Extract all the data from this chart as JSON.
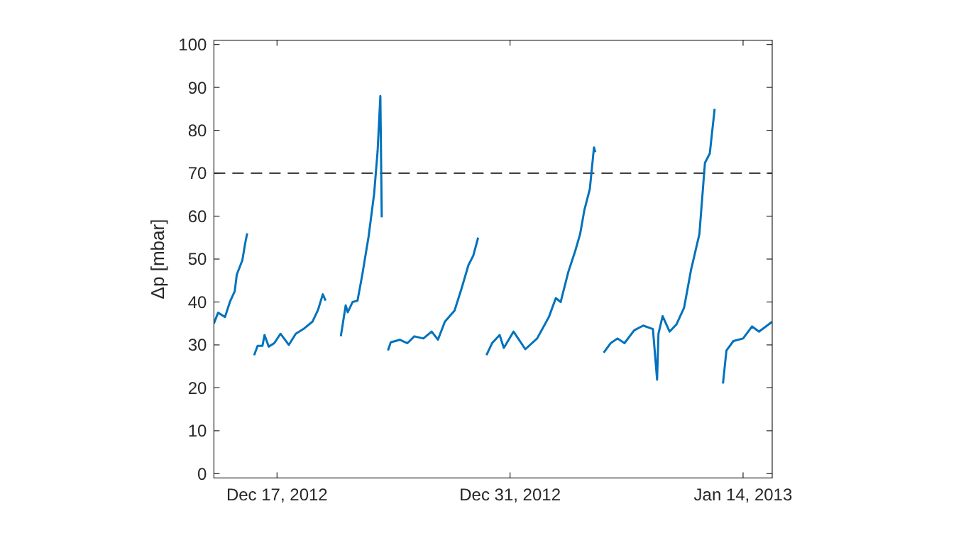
{
  "chart_data": {
    "type": "line",
    "ylabel": "Δp [mbar]",
    "xlim": [
      "2012-12-13T05:00",
      "2013-01-15T18:00"
    ],
    "xticks": [
      {
        "value": "2012-12-17",
        "label": "Dec 17, 2012"
      },
      {
        "value": "2012-12-31",
        "label": "Dec 31, 2012"
      },
      {
        "value": "2013-01-14",
        "label": "Jan 14, 2013"
      }
    ],
    "ylim": [
      -1,
      101
    ],
    "yticks": [
      0,
      10,
      20,
      30,
      40,
      50,
      60,
      70,
      80,
      90,
      100
    ],
    "grid": false,
    "marker": "none",
    "line_style": "solid",
    "ref_lines": [
      {
        "axis": "y",
        "value": 70,
        "color": "#404040",
        "line_style": "dashed"
      }
    ],
    "series": [
      {
        "color": "#0072bd",
        "x": [
          "2012-12-13T05:00",
          "2012-12-13T11:00",
          "2012-12-13T21:00",
          "2012-12-14T04:00",
          "2012-12-14T11:00",
          "2012-12-14T14:00",
          "2012-12-14T22:00",
          "2012-12-15T02:00",
          "2012-12-15T05:00",
          "2012-12-15T08:00",
          "2012-12-15T14:00",
          "2012-12-15T15:00",
          "2012-12-15T20:00",
          "2012-12-16T03:00",
          "2012-12-16T06:00",
          "2012-12-16T12:00",
          "2012-12-16T20:00",
          "2012-12-17T05:00",
          "2012-12-17T17:00",
          "2012-12-18T03:00",
          "2012-12-18T14:00",
          "2012-12-19T03:00",
          "2012-12-19T11:00",
          "2012-12-19T18:00",
          "2012-12-19T22:00",
          "2012-12-20T00:00",
          "2012-12-20T18:00",
          "2012-12-20T20:00",
          "2012-12-21T03:00",
          "2012-12-21T06:00",
          "2012-12-21T13:00",
          "2012-12-21T20:00",
          "2012-12-22T03:00",
          "2012-12-22T12:00",
          "2012-12-22T20:00",
          "2012-12-23T01:00",
          "2012-12-23T05:00",
          "2012-12-23T07:00",
          "2012-12-23T09:00",
          "2012-12-23T14:00",
          "2012-12-23T16:00",
          "2012-12-23T20:00",
          "2012-12-24T09:00",
          "2012-12-24T20:00",
          "2012-12-25T06:00",
          "2012-12-25T19:00",
          "2012-12-26T07:00",
          "2012-12-26T16:00",
          "2012-12-27T02:00",
          "2012-12-27T16:00",
          "2012-12-28T02:00",
          "2012-12-28T12:00",
          "2012-12-28T19:00",
          "2012-12-29T02:00",
          "2012-12-29T05:00",
          "2012-12-29T12:00",
          "2012-12-29T14:00",
          "2012-12-29T22:00",
          "2012-12-30T09:00",
          "2012-12-30T15:00",
          "2012-12-31T05:00",
          "2012-12-31T22:00",
          "2013-01-01T15:00",
          "2013-01-02T08:00",
          "2013-01-02T18:00",
          "2013-01-03T01:00",
          "2013-01-03T12:00",
          "2013-01-03T22:00",
          "2013-01-04T05:00",
          "2013-01-04T11:00",
          "2013-01-04T19:00",
          "2013-01-05T01:00",
          "2013-01-05T03:00",
          "2013-01-05T05:00",
          "2013-01-05T11:00",
          "2013-01-05T15:00",
          "2013-01-06T01:00",
          "2013-01-06T11:00",
          "2013-01-06T21:00",
          "2013-01-07T11:00",
          "2013-01-08T00:00",
          "2013-01-08T14:00",
          "2013-01-08T20:00",
          "2013-01-08T22:00",
          "2013-01-09T04:00",
          "2013-01-09T14:00",
          "2013-01-10T00:00",
          "2013-01-10T11:00",
          "2013-01-10T21:00",
          "2013-01-11T09:00",
          "2013-01-11T17:00",
          "2013-01-12T00:00",
          "2013-01-12T07:00",
          "2013-01-12T10:00",
          "2013-01-12T15:00",
          "2013-01-12T19:00",
          "2013-01-13T00:00",
          "2013-01-13T10:00",
          "2013-01-14T00:00",
          "2013-01-14T13:00",
          "2013-01-14T23:00",
          "2013-01-15T18:00"
        ],
        "values": [
          35,
          37.5,
          36.5,
          40,
          42.5,
          46.4,
          49.7,
          53.6,
          56,
          null,
          null,
          27.6,
          29.8,
          29.8,
          32.3,
          29.6,
          30.4,
          32.6,
          30,
          32.6,
          33.7,
          35.4,
          38.1,
          41.8,
          40.3,
          null,
          null,
          32,
          39.2,
          37.6,
          40,
          40.3,
          46.4,
          55.2,
          65.2,
          75.1,
          88,
          59.7,
          null,
          null,
          28.7,
          30.6,
          31.2,
          30.4,
          32,
          31.5,
          33.1,
          31.2,
          35.4,
          38,
          43.1,
          48.6,
          50.8,
          55,
          null,
          null,
          27.6,
          30.4,
          32.3,
          29.3,
          33.1,
          29,
          31.5,
          36.5,
          40.9,
          40,
          47,
          51.9,
          55.8,
          61.3,
          66.3,
          76,
          74.9,
          null,
          null,
          28.2,
          30.4,
          31.5,
          30.4,
          33.4,
          34.5,
          33.7,
          21.9,
          32.6,
          36.7,
          33.1,
          34.8,
          38.7,
          47.5,
          55.8,
          72.4,
          74.6,
          85,
          null,
          null,
          21,
          28.7,
          30.9,
          31.5,
          34.3,
          33.1,
          35.4
        ]
      }
    ]
  }
}
